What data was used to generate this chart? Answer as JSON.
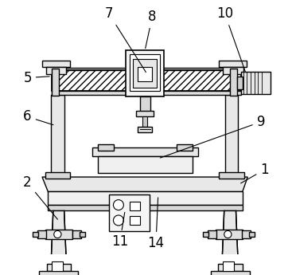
{
  "background_color": "#ffffff",
  "line_color": "#000000",
  "figsize": [
    3.67,
    3.45
  ],
  "dpi": 100,
  "label_fontsize": 12
}
